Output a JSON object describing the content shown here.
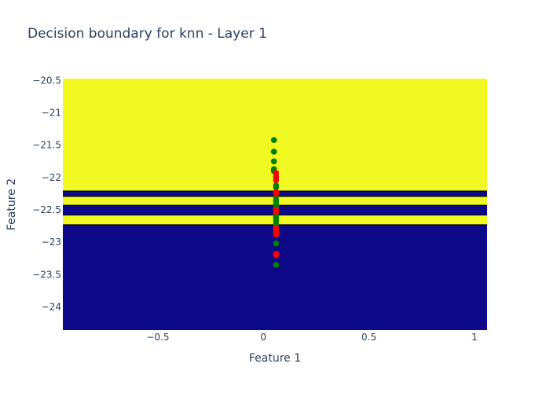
{
  "chart_data": {
    "type": "scatter",
    "title": "Decision boundary for knn - Layer 1",
    "xlabel": "Feature 1",
    "ylabel": "Feature 2",
    "xlim": [
      -0.95,
      1.06
    ],
    "ylim": [
      -24.36,
      -20.47
    ],
    "x_ticks": [
      -0.5,
      0,
      0.5,
      1
    ],
    "x_tick_labels": [
      "−0.5",
      "0",
      "0.5",
      "1"
    ],
    "y_ticks": [
      -20.5,
      -21,
      -21.5,
      -22,
      -22.5,
      -23,
      -23.5,
      -24
    ],
    "y_tick_labels": [
      "−20.5",
      "−21",
      "−21.5",
      "−22",
      "−22.5",
      "−23",
      "−23.5",
      "−24"
    ],
    "colors": {
      "region_class_1": "#f0f921",
      "region_class_0": "#0d0887",
      "point_green": "#008000",
      "point_red": "#ff0000",
      "text": "#2a3f5f"
    },
    "decision_regions": [
      {
        "class": "yellow",
        "y_from": -22.21,
        "y_to": -20.47
      },
      {
        "class": "navy",
        "y_from": -22.29,
        "y_to": -22.21
      },
      {
        "class": "yellow",
        "y_from": -22.43,
        "y_to": -22.29
      },
      {
        "class": "navy",
        "y_from": -22.58,
        "y_to": -22.43
      },
      {
        "class": "yellow",
        "y_from": -22.73,
        "y_to": -22.58
      },
      {
        "class": "navy",
        "y_from": -24.36,
        "y_to": -22.73
      }
    ],
    "series": [
      {
        "color": "green",
        "x": [
          0.05,
          0.05,
          0.05,
          0.05,
          0.05,
          0.06,
          0.06,
          0.06,
          0.06,
          0.06,
          0.06,
          0.06,
          0.06,
          0.06,
          0.06,
          0.06,
          0.06,
          0.06,
          0.06,
          0.06,
          0.06,
          0.06
        ],
        "y": [
          -21.42,
          -21.6,
          -21.75,
          -21.87,
          -21.9,
          -22.0,
          -22.12,
          -22.15,
          -22.3,
          -22.35,
          -22.38,
          -22.42,
          -22.46,
          -22.58,
          -22.62,
          -22.67,
          -22.72,
          -22.77,
          -22.85,
          -22.88,
          -23.02,
          -23.35
        ]
      },
      {
        "color": "red",
        "x": [
          0.06,
          0.06,
          0.06,
          0.06,
          0.06,
          0.06,
          0.06,
          0.06,
          0.06,
          0.06,
          0.06,
          0.06,
          0.06
        ],
        "y": [
          -21.93,
          -21.98,
          -22.04,
          -22.22,
          -22.25,
          -22.5,
          -22.53,
          -22.78,
          -22.8,
          -22.84,
          -22.88,
          -23.18,
          -23.2
        ]
      }
    ]
  }
}
